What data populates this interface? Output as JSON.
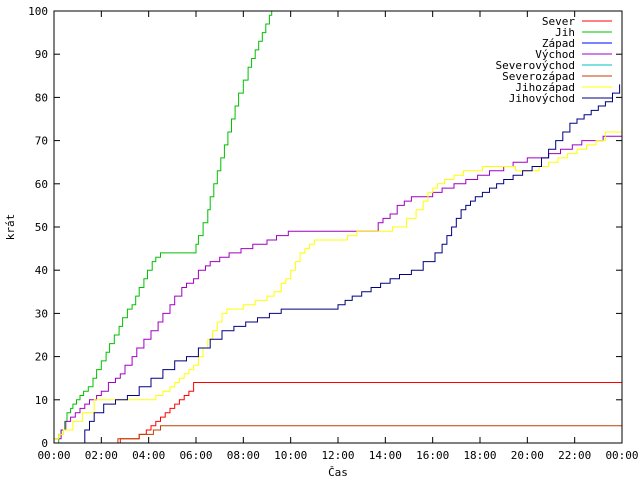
{
  "chart_data": {
    "type": "line",
    "title": "",
    "xlabel": "Čas",
    "ylabel": "krát",
    "xlim": [
      0,
      24
    ],
    "ylim": [
      0,
      100
    ],
    "y_ticks": [
      0,
      10,
      20,
      30,
      40,
      50,
      60,
      70,
      80,
      90,
      100
    ],
    "x_ticks": [
      {
        "value": 0,
        "label": "00:00"
      },
      {
        "value": 2,
        "label": "02:00"
      },
      {
        "value": 4,
        "label": "04:00"
      },
      {
        "value": 6,
        "label": "06:00"
      },
      {
        "value": 8,
        "label": "08:00"
      },
      {
        "value": 10,
        "label": "10:00"
      },
      {
        "value": 12,
        "label": "12:00"
      },
      {
        "value": 14,
        "label": "14:00"
      },
      {
        "value": 16,
        "label": "16:00"
      },
      {
        "value": 18,
        "label": "18:00"
      },
      {
        "value": 20,
        "label": "20:00"
      },
      {
        "value": 22,
        "label": "22:00"
      },
      {
        "value": 24,
        "label": "00:00"
      }
    ],
    "grid": false,
    "legend_position": "top-right",
    "step": true,
    "series": [
      {
        "name": "Sever",
        "color": "#ff0000",
        "x": [
          2.7,
          2.8,
          3.6,
          3.9,
          4.1,
          4.3,
          4.5,
          4.7,
          4.9,
          5.1,
          5.3,
          5.5,
          5.7,
          5.9,
          24
        ],
        "y": [
          0,
          1,
          2,
          3,
          4,
          5,
          6,
          7,
          8,
          9,
          10,
          11,
          12,
          14,
          14
        ]
      },
      {
        "name": "Jih",
        "color": "#00c000",
        "x": [
          0.1,
          0.2,
          0.3,
          0.45,
          0.55,
          0.7,
          0.8,
          0.95,
          1.1,
          1.25,
          1.45,
          1.65,
          1.8,
          2.0,
          2.2,
          2.35,
          2.55,
          2.75,
          2.9,
          3.1,
          3.3,
          3.45,
          3.6,
          3.8,
          3.95,
          4.15,
          4.3,
          4.5,
          6.0,
          6.1,
          6.3,
          6.5,
          6.6,
          6.75,
          6.9,
          7.05,
          7.2,
          7.35,
          7.5,
          7.65,
          7.8,
          8.0,
          8.2,
          8.35,
          8.5,
          8.65,
          8.8,
          8.95,
          9.1,
          9.2
        ],
        "y": [
          0,
          2,
          3,
          5,
          7,
          8,
          9,
          10,
          11,
          12,
          13,
          15,
          17,
          19,
          21,
          23,
          25,
          27,
          29,
          31,
          32,
          34,
          36,
          38,
          40,
          42,
          43,
          44,
          46,
          48,
          51,
          54,
          57,
          60,
          63,
          66,
          69,
          72,
          75,
          78,
          81,
          84,
          87,
          89,
          91,
          93,
          95,
          97,
          99,
          100
        ]
      },
      {
        "name": "Západ",
        "color": "#0000ff",
        "x": [],
        "y": []
      },
      {
        "name": "Východ",
        "color": "#a000c0",
        "x": [
          0,
          0.3,
          0.5,
          0.7,
          0.9,
          1.1,
          1.3,
          1.5,
          1.8,
          2.0,
          2.3,
          2.6,
          2.8,
          3.0,
          3.3,
          3.5,
          3.8,
          4.1,
          4.4,
          4.6,
          4.9,
          5.1,
          5.4,
          5.6,
          5.9,
          6.1,
          6.4,
          6.6,
          7.0,
          7.4,
          7.9,
          8.4,
          9.0,
          9.4,
          9.9,
          10.4,
          13.7,
          13.9,
          14.2,
          14.5,
          14.8,
          15.1,
          15.6,
          16.0,
          16.4,
          16.9,
          17.4,
          17.9,
          18.4,
          19.0,
          19.4,
          20.0,
          20.4,
          20.9,
          21.4,
          21.9,
          22.3,
          22.8,
          23.2,
          24
        ],
        "y": [
          1,
          3,
          5,
          6,
          7,
          8,
          9,
          10,
          11,
          12,
          14,
          15,
          16,
          18,
          20,
          22,
          24,
          26,
          28,
          30,
          32,
          34,
          36,
          37,
          38,
          40,
          41,
          42,
          43,
          44,
          45,
          46,
          47,
          48,
          49,
          49,
          51,
          52,
          53,
          55,
          56,
          57,
          57,
          58,
          59,
          60,
          61,
          62,
          63,
          64,
          65,
          66,
          66,
          67,
          68,
          69,
          70,
          70,
          71,
          71
        ]
      },
      {
        "name": "Severovýchod",
        "color": "#00c0c0",
        "x": [],
        "y": []
      },
      {
        "name": "Severozápad",
        "color": "#c04000",
        "x": [
          2.6,
          2.7,
          3.1,
          3.6,
          4.2,
          4.5,
          4.7,
          24
        ],
        "y": [
          0,
          1,
          1,
          2,
          3,
          4,
          4,
          4
        ]
      },
      {
        "name": "Jihozápad",
        "color": "#ffff00",
        "x": [
          0,
          0.2,
          0.4,
          0.8,
          1.2,
          1.7,
          3.8,
          4.3,
          4.6,
          4.9,
          5.1,
          5.3,
          5.5,
          5.7,
          5.9,
          6.1,
          6.3,
          6.5,
          6.7,
          6.9,
          7.1,
          7.3,
          7.5,
          7.7,
          8.0,
          8.5,
          9.0,
          9.3,
          9.6,
          9.8,
          10.0,
          10.2,
          10.4,
          10.6,
          10.8,
          11.0,
          11.3,
          11.6,
          12.0,
          12.4,
          12.8,
          13.3,
          13.8,
          14.3,
          14.9,
          15.3,
          15.6,
          15.8,
          16.0,
          16.2,
          16.5,
          16.9,
          17.3,
          17.7,
          18.1,
          18.5,
          19.0,
          19.5,
          20.0,
          20.5,
          20.9,
          21.3,
          21.7,
          22.1,
          22.5,
          22.9,
          23.3,
          24
        ],
        "y": [
          1,
          2,
          3,
          5,
          7,
          10,
          10,
          11,
          12,
          13,
          14,
          15,
          16,
          17,
          18,
          20,
          22,
          24,
          26,
          28,
          30,
          31,
          31,
          31,
          32,
          33,
          34,
          35,
          37,
          38,
          40,
          42,
          44,
          45,
          46,
          47,
          47,
          47,
          47,
          48,
          49,
          49,
          49,
          50,
          52,
          54,
          56,
          58,
          59,
          60,
          61,
          62,
          63,
          63,
          64,
          64,
          64,
          63,
          63,
          64,
          65,
          66,
          67,
          68,
          69,
          70,
          72,
          73
        ]
      },
      {
        "name": "Jihovýchod",
        "color": "#000080",
        "x": [
          1.1,
          1.3,
          1.5,
          1.7,
          2.1,
          2.6,
          3.1,
          3.6,
          4.1,
          4.6,
          5.1,
          5.6,
          6.1,
          6.6,
          7.1,
          7.6,
          8.1,
          8.6,
          9.1,
          9.6,
          12.0,
          12.3,
          12.6,
          13.0,
          13.4,
          13.8,
          14.2,
          14.6,
          15.1,
          15.6,
          16.1,
          16.4,
          16.6,
          16.8,
          17.0,
          17.2,
          17.4,
          17.6,
          17.8,
          18.1,
          18.4,
          18.7,
          19.0,
          19.4,
          19.8,
          20.2,
          20.6,
          20.9,
          21.2,
          21.5,
          21.8,
          22.1,
          22.4,
          22.7,
          23.0,
          23.3,
          23.6,
          23.9
        ],
        "y": [
          0,
          3,
          5,
          7,
          9,
          10,
          11,
          13,
          15,
          17,
          19,
          20,
          22,
          24,
          26,
          27,
          28,
          29,
          30,
          31,
          32,
          33,
          34,
          35,
          36,
          37,
          38,
          39,
          40,
          42,
          44,
          46,
          48,
          50,
          52,
          54,
          55,
          56,
          57,
          58,
          59,
          60,
          61,
          62,
          63,
          64,
          66,
          68,
          70,
          72,
          74,
          75,
          76,
          77,
          78,
          79,
          81,
          83
        ]
      }
    ]
  }
}
